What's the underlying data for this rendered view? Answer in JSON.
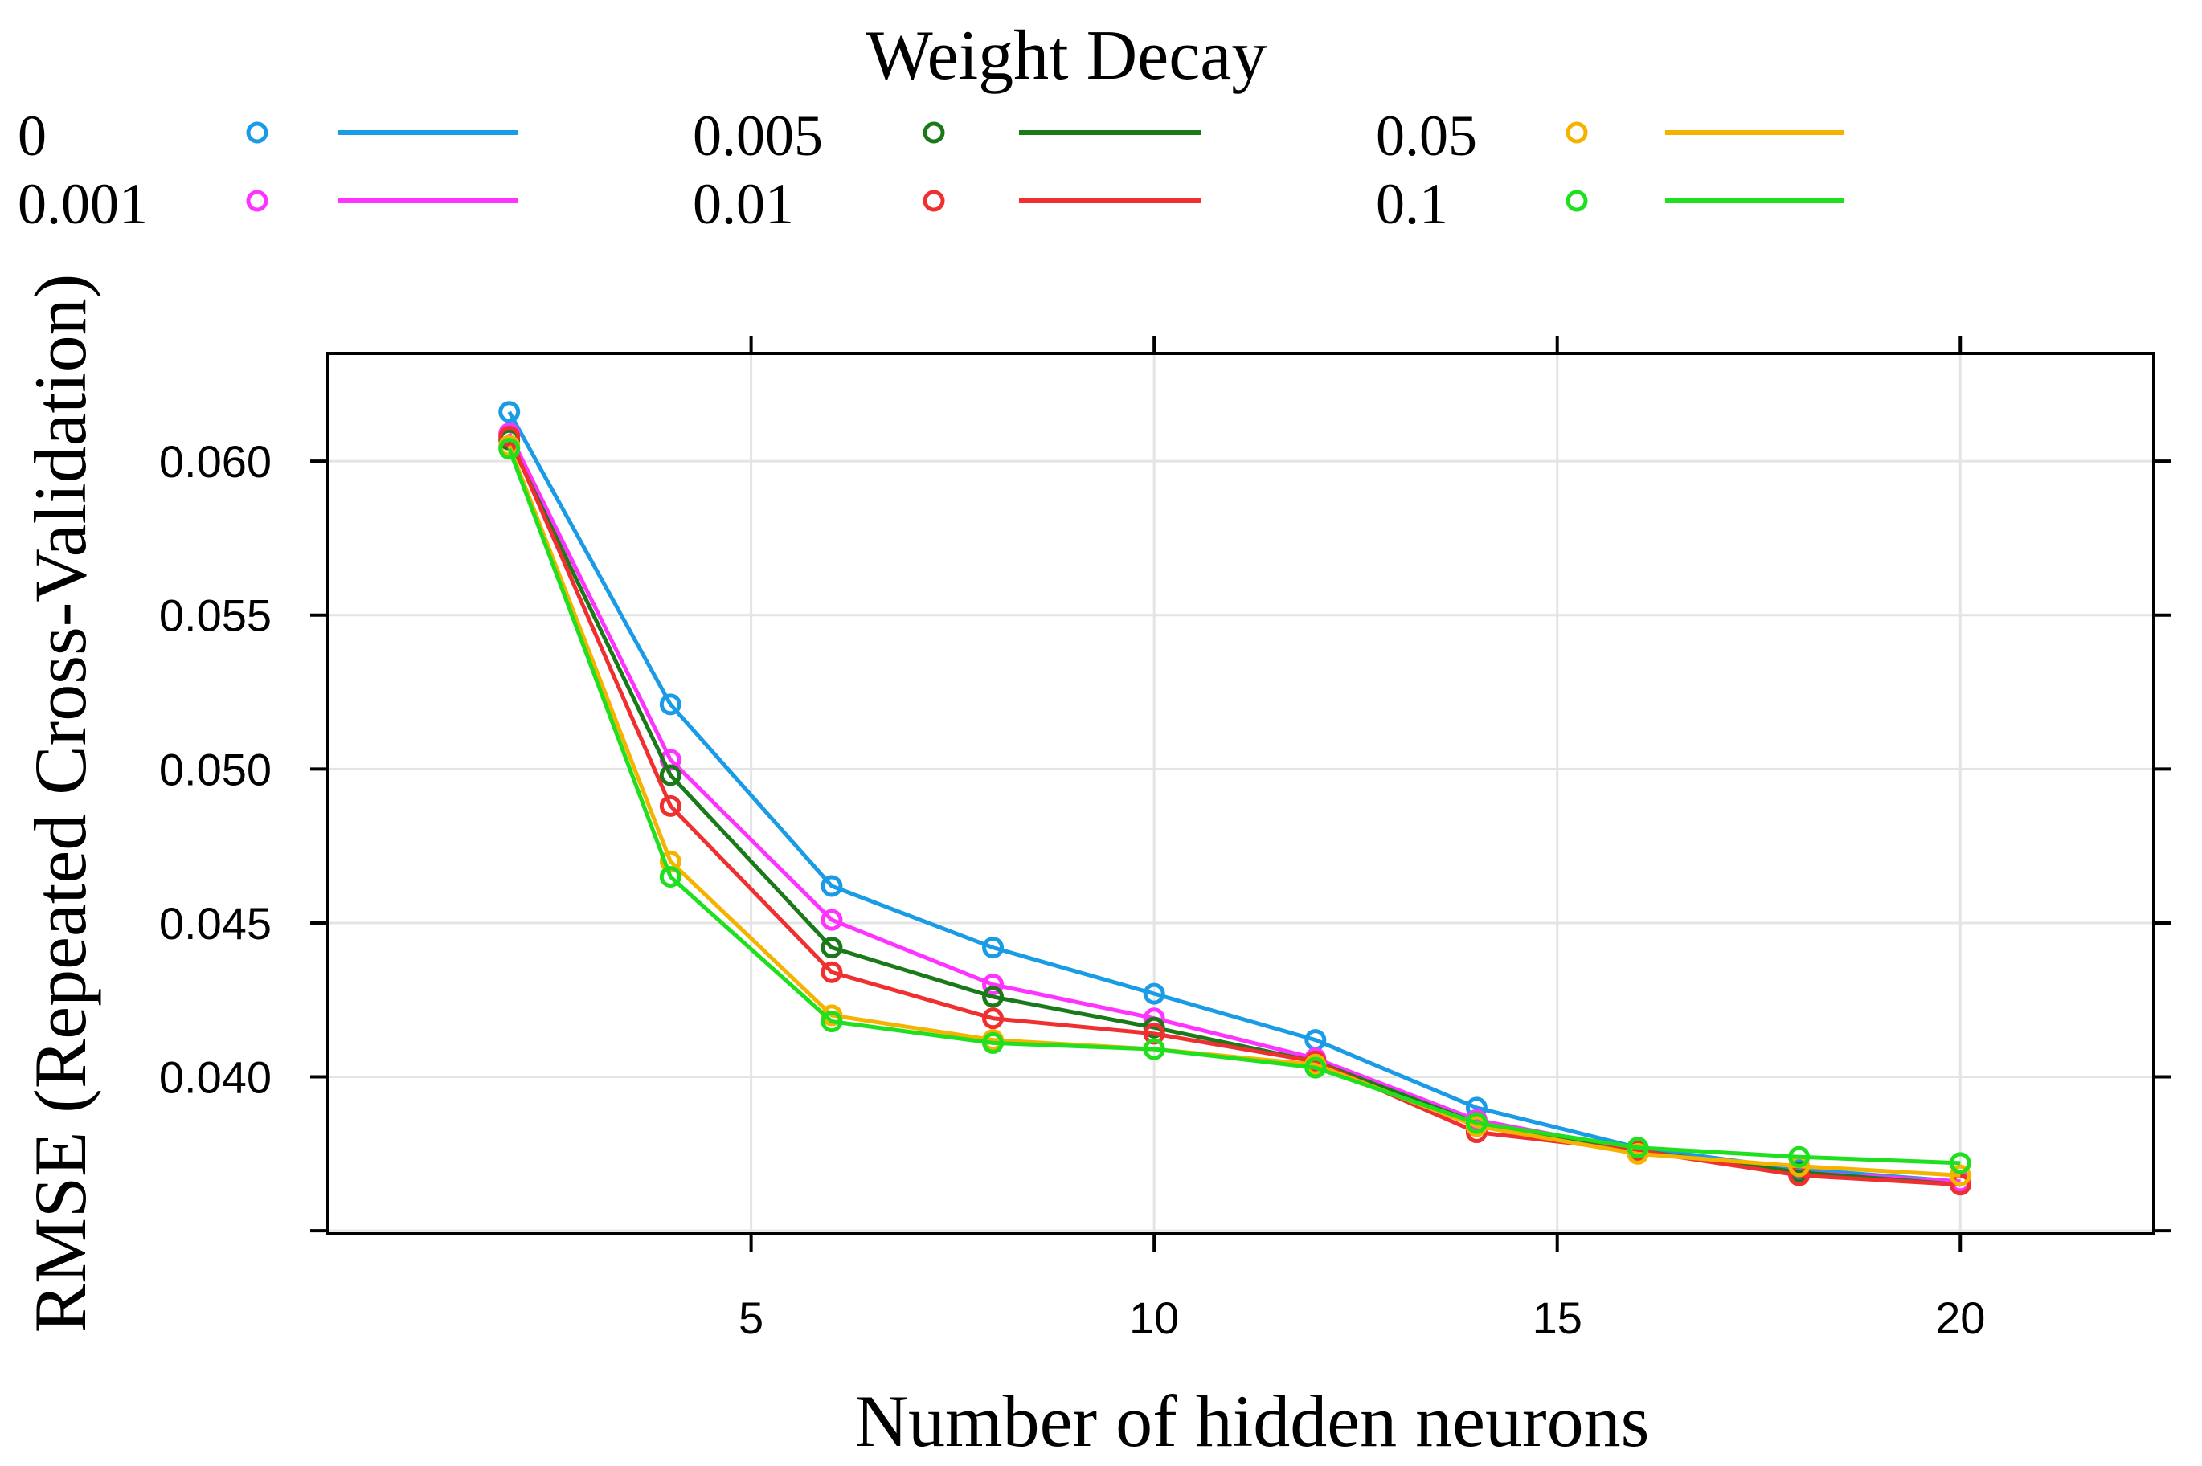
{
  "chart_data": {
    "type": "line",
    "title": "Weight Decay",
    "xlabel": "Number of hidden neurons",
    "ylabel": "RMSE (Repeated Cross-Validation)",
    "x": [
      2,
      4,
      6,
      8,
      10,
      12,
      14,
      16,
      18,
      20
    ],
    "xlim": [
      -0.25,
      22.4
    ],
    "ylim": [
      0.0349,
      0.0635
    ],
    "xticks": [
      5,
      10,
      15,
      20
    ],
    "xtick_labels": [
      "5",
      "10",
      "15",
      "20"
    ],
    "yticks": [
      0.035,
      0.04,
      0.045,
      0.05,
      0.055,
      0.06
    ],
    "ytick_labels": [
      "",
      "0.040",
      "0.045",
      "0.050",
      "0.055",
      "0.060"
    ],
    "grid": true,
    "legend_position": "top",
    "series": [
      {
        "name": "0",
        "color": "#1a9be6",
        "values": [
          0.0616,
          0.0521,
          0.0462,
          0.0442,
          0.0427,
          0.0412,
          0.039,
          0.0377,
          0.037,
          0.0366
        ]
      },
      {
        "name": "0.001",
        "color": "#ff33ff",
        "values": [
          0.0609,
          0.0503,
          0.0451,
          0.043,
          0.0419,
          0.0406,
          0.0386,
          0.0376,
          0.0369,
          0.0366
        ]
      },
      {
        "name": "0.005",
        "color": "#1a7a1a",
        "values": [
          0.0607,
          0.0498,
          0.0442,
          0.0426,
          0.0416,
          0.0405,
          0.0385,
          0.0376,
          0.0369,
          0.0365
        ]
      },
      {
        "name": "0.01",
        "color": "#f03030",
        "values": [
          0.0608,
          0.0488,
          0.0434,
          0.0419,
          0.0414,
          0.0405,
          0.0382,
          0.0376,
          0.0368,
          0.0365
        ]
      },
      {
        "name": "0.05",
        "color": "#f5b300",
        "values": [
          0.0605,
          0.047,
          0.042,
          0.0412,
          0.0409,
          0.0404,
          0.0384,
          0.0375,
          0.0371,
          0.0368
        ]
      },
      {
        "name": "0.1",
        "color": "#1fe01f",
        "values": [
          0.0604,
          0.0465,
          0.0418,
          0.0411,
          0.0409,
          0.0403,
          0.0385,
          0.0377,
          0.0374,
          0.0372
        ]
      }
    ]
  }
}
